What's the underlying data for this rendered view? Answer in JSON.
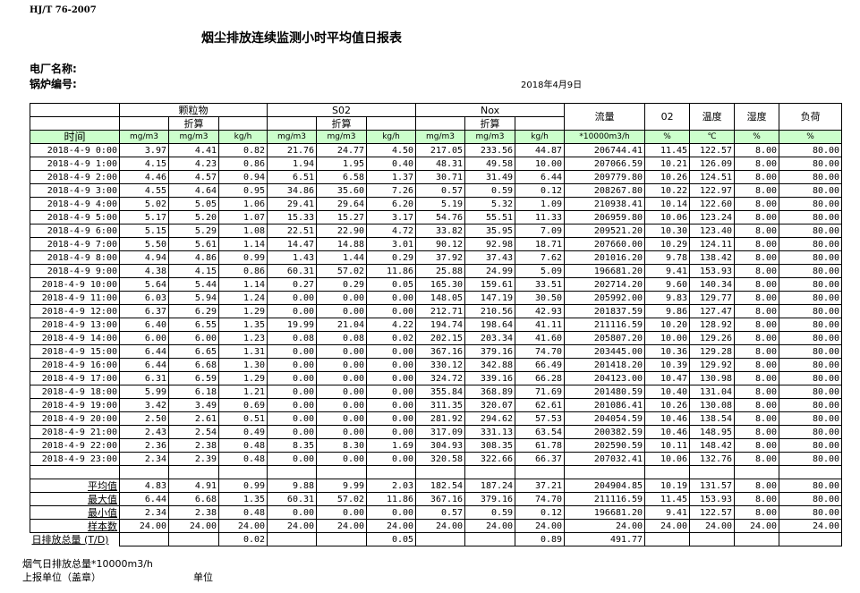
{
  "header": {
    "standard": "HJ/T  76-2007",
    "title": "烟尘排放连续监测小时平均值日报表",
    "plant_label": "电厂名称:",
    "boiler_label": "锅炉编号:",
    "date": "2018年4月9日"
  },
  "table": {
    "groups": {
      "particulate": "颗粒物",
      "so2": "S02",
      "nox": "Nox",
      "flow": "流量",
      "o2": "02",
      "temp": "温度",
      "humidity": "湿度",
      "load": "负荷"
    },
    "converted": "折算",
    "units": [
      "时间",
      "mg/m3",
      "mg/m3",
      "kg/h",
      "mg/m3",
      "mg/m3",
      "kg/h",
      "mg/m3",
      "mg/m3",
      "kg/h",
      "*10000m3/h",
      "%",
      "℃",
      "%",
      "%"
    ],
    "rows": [
      [
        "2018-4-9 0:00",
        "3.97",
        "4.41",
        "0.82",
        "21.76",
        "24.77",
        "4.50",
        "217.05",
        "233.56",
        "44.87",
        "206744.41",
        "11.45",
        "122.57",
        "8.00",
        "80.00"
      ],
      [
        "2018-4-9 1:00",
        "4.15",
        "4.23",
        "0.86",
        "1.94",
        "1.95",
        "0.40",
        "48.31",
        "49.58",
        "10.00",
        "207066.59",
        "10.21",
        "126.09",
        "8.00",
        "80.00"
      ],
      [
        "2018-4-9 2:00",
        "4.46",
        "4.57",
        "0.94",
        "6.51",
        "6.58",
        "1.37",
        "30.71",
        "31.49",
        "6.44",
        "209779.80",
        "10.26",
        "124.51",
        "8.00",
        "80.00"
      ],
      [
        "2018-4-9 3:00",
        "4.55",
        "4.64",
        "0.95",
        "34.86",
        "35.60",
        "7.26",
        "0.57",
        "0.59",
        "0.12",
        "208267.80",
        "10.22",
        "122.97",
        "8.00",
        "80.00"
      ],
      [
        "2018-4-9 4:00",
        "5.02",
        "5.05",
        "1.06",
        "29.41",
        "29.64",
        "6.20",
        "5.19",
        "5.32",
        "1.09",
        "210938.41",
        "10.14",
        "122.60",
        "8.00",
        "80.00"
      ],
      [
        "2018-4-9 5:00",
        "5.17",
        "5.20",
        "1.07",
        "15.33",
        "15.27",
        "3.17",
        "54.76",
        "55.51",
        "11.33",
        "206959.80",
        "10.06",
        "123.24",
        "8.00",
        "80.00"
      ],
      [
        "2018-4-9 6:00",
        "5.15",
        "5.29",
        "1.08",
        "22.51",
        "22.90",
        "4.72",
        "33.82",
        "35.95",
        "7.09",
        "209521.20",
        "10.30",
        "123.40",
        "8.00",
        "80.00"
      ],
      [
        "2018-4-9 7:00",
        "5.50",
        "5.61",
        "1.14",
        "14.47",
        "14.88",
        "3.01",
        "90.12",
        "92.98",
        "18.71",
        "207660.00",
        "10.29",
        "124.11",
        "8.00",
        "80.00"
      ],
      [
        "2018-4-9 8:00",
        "4.94",
        "4.86",
        "0.99",
        "1.43",
        "1.44",
        "0.29",
        "37.92",
        "37.43",
        "7.62",
        "201016.20",
        "9.78",
        "138.42",
        "8.00",
        "80.00"
      ],
      [
        "2018-4-9 9:00",
        "4.38",
        "4.15",
        "0.86",
        "60.31",
        "57.02",
        "11.86",
        "25.88",
        "24.99",
        "5.09",
        "196681.20",
        "9.41",
        "153.93",
        "8.00",
        "80.00"
      ],
      [
        "2018-4-9 10:00",
        "5.64",
        "5.44",
        "1.14",
        "0.27",
        "0.29",
        "0.05",
        "165.30",
        "159.61",
        "33.51",
        "202714.20",
        "9.60",
        "140.34",
        "8.00",
        "80.00"
      ],
      [
        "2018-4-9 11:00",
        "6.03",
        "5.94",
        "1.24",
        "0.00",
        "0.00",
        "0.00",
        "148.05",
        "147.19",
        "30.50",
        "205992.00",
        "9.83",
        "129.77",
        "8.00",
        "80.00"
      ],
      [
        "2018-4-9 12:00",
        "6.37",
        "6.29",
        "1.29",
        "0.00",
        "0.00",
        "0.00",
        "212.71",
        "210.56",
        "42.93",
        "201837.59",
        "9.86",
        "127.47",
        "8.00",
        "80.00"
      ],
      [
        "2018-4-9 13:00",
        "6.40",
        "6.55",
        "1.35",
        "19.99",
        "21.04",
        "4.22",
        "194.74",
        "198.64",
        "41.11",
        "211116.59",
        "10.20",
        "128.92",
        "8.00",
        "80.00"
      ],
      [
        "2018-4-9 14:00",
        "6.00",
        "6.00",
        "1.23",
        "0.08",
        "0.08",
        "0.02",
        "202.15",
        "203.34",
        "41.60",
        "205807.20",
        "10.00",
        "129.26",
        "8.00",
        "80.00"
      ],
      [
        "2018-4-9 15:00",
        "6.44",
        "6.65",
        "1.31",
        "0.00",
        "0.00",
        "0.00",
        "367.16",
        "379.16",
        "74.70",
        "203445.00",
        "10.36",
        "129.28",
        "8.00",
        "80.00"
      ],
      [
        "2018-4-9 16:00",
        "6.44",
        "6.68",
        "1.30",
        "0.00",
        "0.00",
        "0.00",
        "330.12",
        "342.88",
        "66.49",
        "201418.20",
        "10.39",
        "129.92",
        "8.00",
        "80.00"
      ],
      [
        "2018-4-9 17:00",
        "6.31",
        "6.59",
        "1.29",
        "0.00",
        "0.00",
        "0.00",
        "324.72",
        "339.16",
        "66.28",
        "204123.00",
        "10.47",
        "130.98",
        "8.00",
        "80.00"
      ],
      [
        "2018-4-9 18:00",
        "5.99",
        "6.18",
        "1.21",
        "0.00",
        "0.00",
        "0.00",
        "355.84",
        "368.89",
        "71.69",
        "201480.59",
        "10.40",
        "131.04",
        "8.00",
        "80.00"
      ],
      [
        "2018-4-9 19:00",
        "3.42",
        "3.49",
        "0.69",
        "0.00",
        "0.00",
        "0.00",
        "311.35",
        "320.07",
        "62.61",
        "201086.41",
        "10.26",
        "130.08",
        "8.00",
        "80.00"
      ],
      [
        "2018-4-9 20:00",
        "2.50",
        "2.61",
        "0.51",
        "0.00",
        "0.00",
        "0.00",
        "281.92",
        "294.62",
        "57.53",
        "204054.59",
        "10.46",
        "138.54",
        "8.00",
        "80.00"
      ],
      [
        "2018-4-9 21:00",
        "2.43",
        "2.54",
        "0.49",
        "0.00",
        "0.00",
        "0.00",
        "317.09",
        "331.13",
        "63.54",
        "200382.59",
        "10.46",
        "148.95",
        "8.00",
        "80.00"
      ],
      [
        "2018-4-9 22:00",
        "2.36",
        "2.38",
        "0.48",
        "8.35",
        "8.30",
        "1.69",
        "304.93",
        "308.35",
        "61.78",
        "202590.59",
        "10.11",
        "148.42",
        "8.00",
        "80.00"
      ],
      [
        "2018-4-9 23:00",
        "2.34",
        "2.39",
        "0.48",
        "0.00",
        "0.00",
        "0.00",
        "320.58",
        "322.66",
        "66.37",
        "207032.41",
        "10.06",
        "132.76",
        "8.00",
        "80.00"
      ]
    ],
    "summary": [
      [
        "平均值",
        "4.83",
        "4.91",
        "0.99",
        "9.88",
        "9.99",
        "2.03",
        "182.54",
        "187.24",
        "37.21",
        "204904.85",
        "10.19",
        "131.57",
        "8.00",
        "80.00"
      ],
      [
        "最大值",
        "6.44",
        "6.68",
        "1.35",
        "60.31",
        "57.02",
        "11.86",
        "367.16",
        "379.16",
        "74.70",
        "211116.59",
        "11.45",
        "153.93",
        "8.00",
        "80.00"
      ],
      [
        "最小值",
        "2.34",
        "2.38",
        "0.48",
        "0.00",
        "0.00",
        "0.00",
        "0.57",
        "0.59",
        "0.12",
        "196681.20",
        "9.41",
        "122.57",
        "8.00",
        "80.00"
      ],
      [
        "样本数",
        "24.00",
        "24.00",
        "24.00",
        "24.00",
        "24.00",
        "24.00",
        "24.00",
        "24.00",
        "24.00",
        "24.00",
        "24.00",
        "24.00",
        "24.00",
        "24.00"
      ],
      [
        "日排放总量 (T/D)",
        "",
        "",
        "0.02",
        "",
        "",
        "0.05",
        "",
        "",
        "0.89",
        "491.77",
        "",
        "",
        "",
        ""
      ]
    ]
  },
  "footer": {
    "flue_gas_total": "烟气日排放总量*10000m3/h",
    "reporting_unit": "上报单位（盖章）",
    "unit": "单位"
  }
}
